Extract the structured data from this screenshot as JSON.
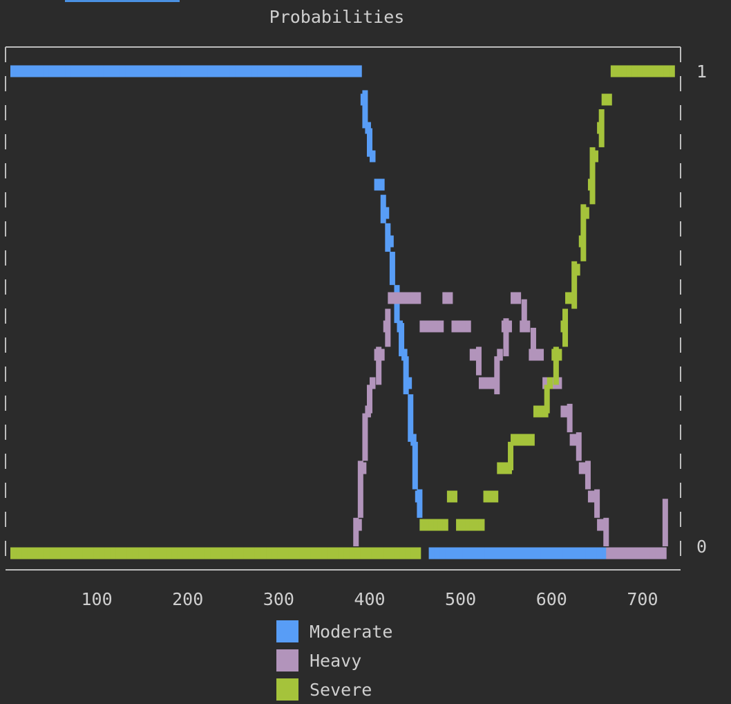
{
  "chart_data": {
    "type": "line",
    "title": "Probabilities",
    "xlabel": "",
    "ylabel": "",
    "xlim": [
      0,
      740
    ],
    "ylim": [
      0,
      1
    ],
    "x_ticks": [
      100,
      200,
      300,
      400,
      500,
      600,
      700
    ],
    "y_ticks": [
      0,
      1
    ],
    "y_tick_labels": [
      "0",
      "1"
    ],
    "grid": false,
    "legend_placement": "bottom",
    "series": [
      {
        "name": "Moderate",
        "color": "#589df6",
        "points": [
          [
            5,
            1
          ],
          [
            385,
            1
          ],
          [
            390,
            0.96
          ],
          [
            395,
            0.88
          ],
          [
            400,
            0.82
          ],
          [
            405,
            0.78
          ],
          [
            410,
            0.74
          ],
          [
            415,
            0.68
          ],
          [
            420,
            0.62
          ],
          [
            425,
            0.55
          ],
          [
            430,
            0.47
          ],
          [
            435,
            0.4
          ],
          [
            440,
            0.32
          ],
          [
            445,
            0.22
          ],
          [
            450,
            0.12
          ],
          [
            455,
            0.06
          ],
          [
            460,
            0.02
          ],
          [
            465,
            0
          ],
          [
            705,
            0
          ]
        ]
      },
      {
        "name": "Heavy",
        "color": "#b294bb",
        "points": [
          [
            5,
            0
          ],
          [
            380,
            0
          ],
          [
            385,
            0.06
          ],
          [
            390,
            0.18
          ],
          [
            395,
            0.28
          ],
          [
            400,
            0.34
          ],
          [
            410,
            0.42
          ],
          [
            420,
            0.5
          ],
          [
            430,
            0.52
          ],
          [
            440,
            0.54
          ],
          [
            450,
            0.5
          ],
          [
            460,
            0.46
          ],
          [
            470,
            0.48
          ],
          [
            480,
            0.5
          ],
          [
            490,
            0.49
          ],
          [
            500,
            0.46
          ],
          [
            510,
            0.42
          ],
          [
            520,
            0.36
          ],
          [
            530,
            0.32
          ],
          [
            540,
            0.4
          ],
          [
            550,
            0.48
          ],
          [
            560,
            0.52
          ],
          [
            570,
            0.46
          ],
          [
            580,
            0.4
          ],
          [
            590,
            0.36
          ],
          [
            600,
            0.33
          ],
          [
            610,
            0.3
          ],
          [
            620,
            0.24
          ],
          [
            630,
            0.18
          ],
          [
            640,
            0.12
          ],
          [
            650,
            0.06
          ],
          [
            660,
            0
          ],
          [
            720,
            0
          ],
          [
            725,
            0.1
          ]
        ]
      },
      {
        "name": "Severe",
        "color": "#a5c33b",
        "points": [
          [
            5,
            0
          ],
          [
            445,
            0
          ],
          [
            455,
            0.02
          ],
          [
            465,
            0.04
          ],
          [
            475,
            0.06
          ],
          [
            485,
            0.08
          ],
          [
            495,
            0.07
          ],
          [
            505,
            0.05
          ],
          [
            515,
            0.04
          ],
          [
            525,
            0.08
          ],
          [
            535,
            0.12
          ],
          [
            545,
            0.16
          ],
          [
            555,
            0.22
          ],
          [
            565,
            0.2
          ],
          [
            575,
            0.24
          ],
          [
            585,
            0.28
          ],
          [
            595,
            0.34
          ],
          [
            605,
            0.42
          ],
          [
            615,
            0.5
          ],
          [
            625,
            0.6
          ],
          [
            635,
            0.72
          ],
          [
            645,
            0.84
          ],
          [
            655,
            0.92
          ],
          [
            660,
            0.96
          ],
          [
            665,
            1
          ],
          [
            735,
            1
          ]
        ]
      }
    ]
  },
  "ui": {
    "accent_tab_color": "#4a90e2"
  }
}
